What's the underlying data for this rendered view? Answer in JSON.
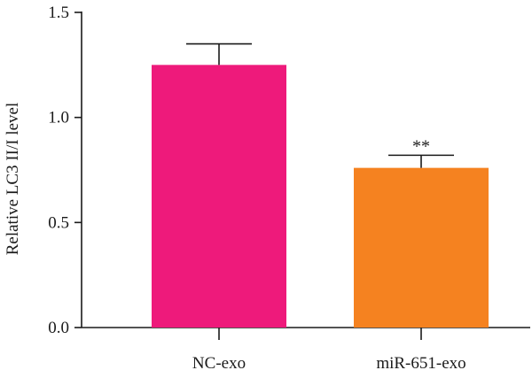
{
  "chart_data": {
    "type": "bar",
    "title": "",
    "xlabel": "",
    "ylabel": "Relative LC3 II/I level",
    "categories": [
      "NC-exo",
      "miR-651-exo"
    ],
    "values": [
      1.25,
      0.76
    ],
    "error_upper": [
      1.35,
      0.82
    ],
    "bar_colors": [
      "#ee1a7b",
      "#f58220"
    ],
    "annotations": [
      "",
      "**"
    ],
    "ylim": [
      0,
      1.5
    ],
    "yticks": [
      0.0,
      0.5,
      1.0,
      1.5
    ],
    "ytick_labels": [
      "0.0",
      "0.5",
      "1.0",
      "1.5"
    ],
    "grid": false,
    "legend": "none"
  }
}
